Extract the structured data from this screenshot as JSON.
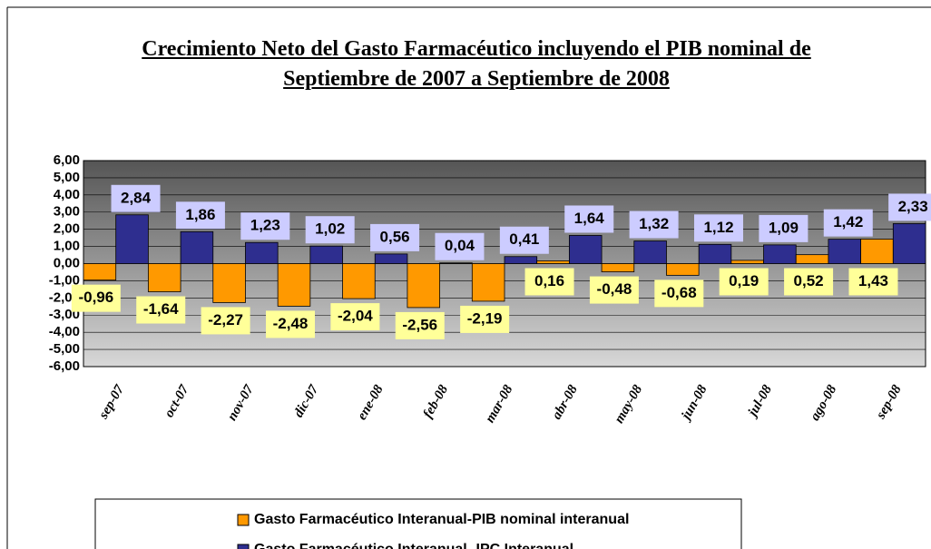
{
  "chart_data": {
    "type": "bar",
    "title": "Crecimiento Neto del Gasto Farmacéutico incluyendo el PIB nominal de Septiembre de 2007 a Septiembre de 2008",
    "categories": [
      "sep-07",
      "oct-07",
      "nov-07",
      "dic-07",
      "ene-08",
      "feb-08",
      "mar-08",
      "abr-08",
      "may-08",
      "jun-08",
      "jul-08",
      "ago-08",
      "sep-08"
    ],
    "series": [
      {
        "name": "Gasto Farmacéutico Interanual-PIB nominal interanual",
        "color": "#ff9900",
        "values": [
          -0.96,
          -1.64,
          -2.27,
          -2.48,
          -2.04,
          -2.56,
          -2.19,
          0.16,
          -0.48,
          -0.68,
          0.19,
          0.52,
          1.43
        ],
        "value_labels": [
          "-0,96",
          "-1,64",
          "-2,27",
          "-2,48",
          "-2,04",
          "-2,56",
          "-2,19",
          "0,16",
          "-0,48",
          "-0,68",
          "0,19",
          "0,52",
          "1,43"
        ]
      },
      {
        "name": "Gasto Farmacéutico Interanual- IPC Interanual",
        "color": "#2e2e8f",
        "values": [
          2.84,
          1.86,
          1.23,
          1.02,
          0.56,
          0.04,
          0.41,
          1.64,
          1.32,
          1.12,
          1.09,
          1.42,
          2.33
        ],
        "value_labels": [
          "2,84",
          "1,86",
          "1,23",
          "1,02",
          "0,56",
          "0,04",
          "0,41",
          "1,64",
          "1,32",
          "1,12",
          "1,09",
          "1,42",
          "2,33"
        ]
      }
    ],
    "ylim": [
      -6,
      6
    ],
    "yticks": [
      {
        "value": -6,
        "label": "-6,00"
      },
      {
        "value": -5,
        "label": "-5,00"
      },
      {
        "value": -4,
        "label": "-4,00"
      },
      {
        "value": -3,
        "label": "-3,00"
      },
      {
        "value": -2,
        "label": "-2,00"
      },
      {
        "value": -1,
        "label": "-1,00"
      },
      {
        "value": 0,
        "label": "0,00"
      },
      {
        "value": 1,
        "label": "1,00"
      },
      {
        "value": 2,
        "label": "2,00"
      },
      {
        "value": 3,
        "label": "3,00"
      },
      {
        "value": 4,
        "label": "4,00"
      },
      {
        "value": 5,
        "label": "5,00"
      },
      {
        "value": 6,
        "label": "6,00"
      }
    ],
    "grid": true
  }
}
